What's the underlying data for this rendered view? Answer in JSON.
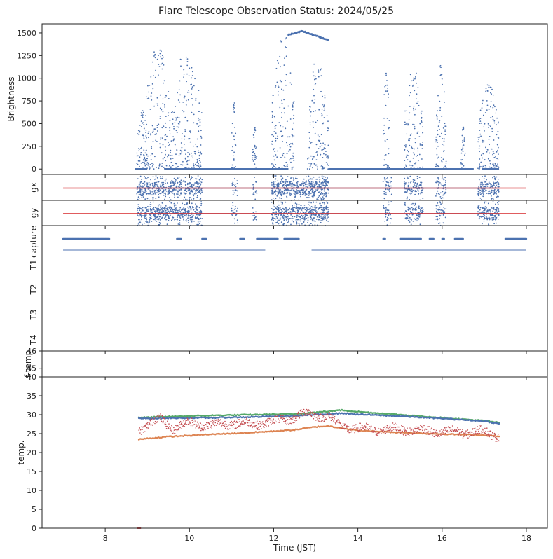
{
  "title": "Flare Telescope Observation Status: 2024/05/25",
  "colors": {
    "blue": "#4c72b0",
    "red": "#d62728",
    "orange": "#dd8452",
    "green": "#55a868",
    "brick": "#c44e52",
    "axis": "#222222"
  },
  "chart_data": [
    {
      "panel": "brightness",
      "type": "scatter",
      "ylabel": "Brightness",
      "ylim": [
        -60,
        1600
      ],
      "yticks": [
        0,
        250,
        500,
        750,
        1000,
        1250,
        1500
      ],
      "note": "dense scatter of brightness vs time; zero-level baseline during 8.7-17.4 with bursts",
      "bursts": [
        {
          "t0": 8.75,
          "t1": 9.0,
          "peak": 650
        },
        {
          "t0": 8.95,
          "t1": 9.55,
          "peak": 1380
        },
        {
          "t0": 9.55,
          "t1": 10.3,
          "peak": 1250
        },
        {
          "t0": 11.0,
          "t1": 11.1,
          "peak": 750
        },
        {
          "t0": 11.5,
          "t1": 11.6,
          "peak": 470
        },
        {
          "t0": 11.95,
          "t1": 12.5,
          "peak": 1450
        },
        {
          "t0": 12.8,
          "t1": 13.3,
          "peak": 1200
        },
        {
          "t0": 14.6,
          "t1": 14.75,
          "peak": 1060
        },
        {
          "t0": 15.1,
          "t1": 15.55,
          "peak": 1100
        },
        {
          "t0": 15.85,
          "t1": 16.1,
          "peak": 1150
        },
        {
          "t0": 16.45,
          "t1": 16.55,
          "peak": 460
        },
        {
          "t0": 16.85,
          "t1": 17.35,
          "peak": 930
        }
      ],
      "plateau": {
        "t0": 12.35,
        "t1": 13.3,
        "from": 1480,
        "peak": 1520,
        "to": 1420
      }
    },
    {
      "panel": "gx",
      "type": "scatter",
      "ylabel": "gx",
      "reference_line": {
        "x": [
          7,
          18
        ],
        "color": "red"
      }
    },
    {
      "panel": "gy",
      "type": "scatter",
      "ylabel": "gy",
      "reference_line": {
        "x": [
          7,
          18
        ],
        "color": "red"
      }
    },
    {
      "panel": "capture",
      "type": "scatter",
      "ylabels": [
        "capture",
        "T1",
        "T2",
        "T3",
        "T4"
      ],
      "capture_segments": [
        [
          7.0,
          8.1
        ],
        [
          9.7,
          9.8
        ],
        [
          10.3,
          10.4
        ],
        [
          11.2,
          11.3
        ],
        [
          11.6,
          12.1
        ],
        [
          12.25,
          12.6
        ],
        [
          14.6,
          14.65
        ],
        [
          15.0,
          15.5
        ],
        [
          15.7,
          15.8
        ],
        [
          16.0,
          16.05
        ],
        [
          16.3,
          16.5
        ],
        [
          17.5,
          18.0
        ]
      ],
      "t1_segments": [
        [
          7.0,
          11.8
        ],
        [
          12.9,
          18.0
        ]
      ]
    },
    {
      "panel": "f-temp",
      "type": "line",
      "ylabel": "f-temp",
      "ylim": [
        44.5,
        46
      ],
      "yticks": [
        45,
        46
      ]
    },
    {
      "panel": "temp",
      "type": "line",
      "xlabel": "Time (JST)",
      "ylabel": "temp.",
      "xlim": [
        6.5,
        18.5
      ],
      "xticks": [
        8,
        10,
        12,
        14,
        16,
        18
      ],
      "ylim": [
        0,
        40
      ],
      "yticks": [
        0,
        5,
        10,
        15,
        20,
        25,
        30,
        35,
        40
      ],
      "series": [
        {
          "color": "green",
          "x": [
            8.8,
            9.5,
            10.5,
            11.5,
            12.5,
            13.0,
            13.6,
            14.0,
            15.0,
            16.0,
            17.0,
            17.35
          ],
          "values": [
            29.2,
            29.5,
            29.8,
            30.0,
            30.2,
            30.6,
            31.2,
            30.8,
            30.0,
            29.2,
            28.4,
            27.9
          ]
        },
        {
          "color": "blue",
          "x": [
            8.8,
            9.5,
            10.5,
            11.5,
            12.5,
            13.0,
            13.6,
            14.0,
            15.0,
            16.0,
            17.0,
            17.35
          ],
          "values": [
            29.0,
            29.1,
            29.2,
            29.4,
            29.7,
            30.0,
            30.4,
            30.1,
            29.6,
            29.0,
            28.3,
            27.6
          ]
        },
        {
          "color": "orange",
          "x": [
            8.8,
            9.5,
            10.5,
            11.5,
            12.5,
            13.0,
            13.3,
            13.6,
            14.0,
            15.0,
            16.0,
            17.0,
            17.35
          ],
          "values": [
            23.5,
            24.2,
            24.8,
            25.3,
            26.0,
            26.8,
            27.0,
            26.5,
            25.8,
            25.3,
            24.9,
            24.6,
            24.3
          ]
        },
        {
          "color": "brick",
          "x": [
            8.8,
            9.0,
            9.3,
            9.6,
            10.0,
            10.5,
            11.0,
            11.5,
            12.0,
            12.5,
            12.8,
            13.0,
            13.3,
            13.6,
            14.0,
            14.5,
            15.0,
            15.5,
            16.0,
            16.5,
            17.0,
            17.35
          ],
          "values": [
            26.0,
            27.5,
            28.8,
            26.5,
            27.8,
            27.2,
            27.8,
            27.5,
            28.2,
            29.3,
            30.4,
            30.0,
            29.5,
            27.0,
            26.3,
            26.0,
            26.2,
            25.8,
            25.5,
            25.4,
            25.6,
            24.3
          ]
        }
      ]
    }
  ]
}
